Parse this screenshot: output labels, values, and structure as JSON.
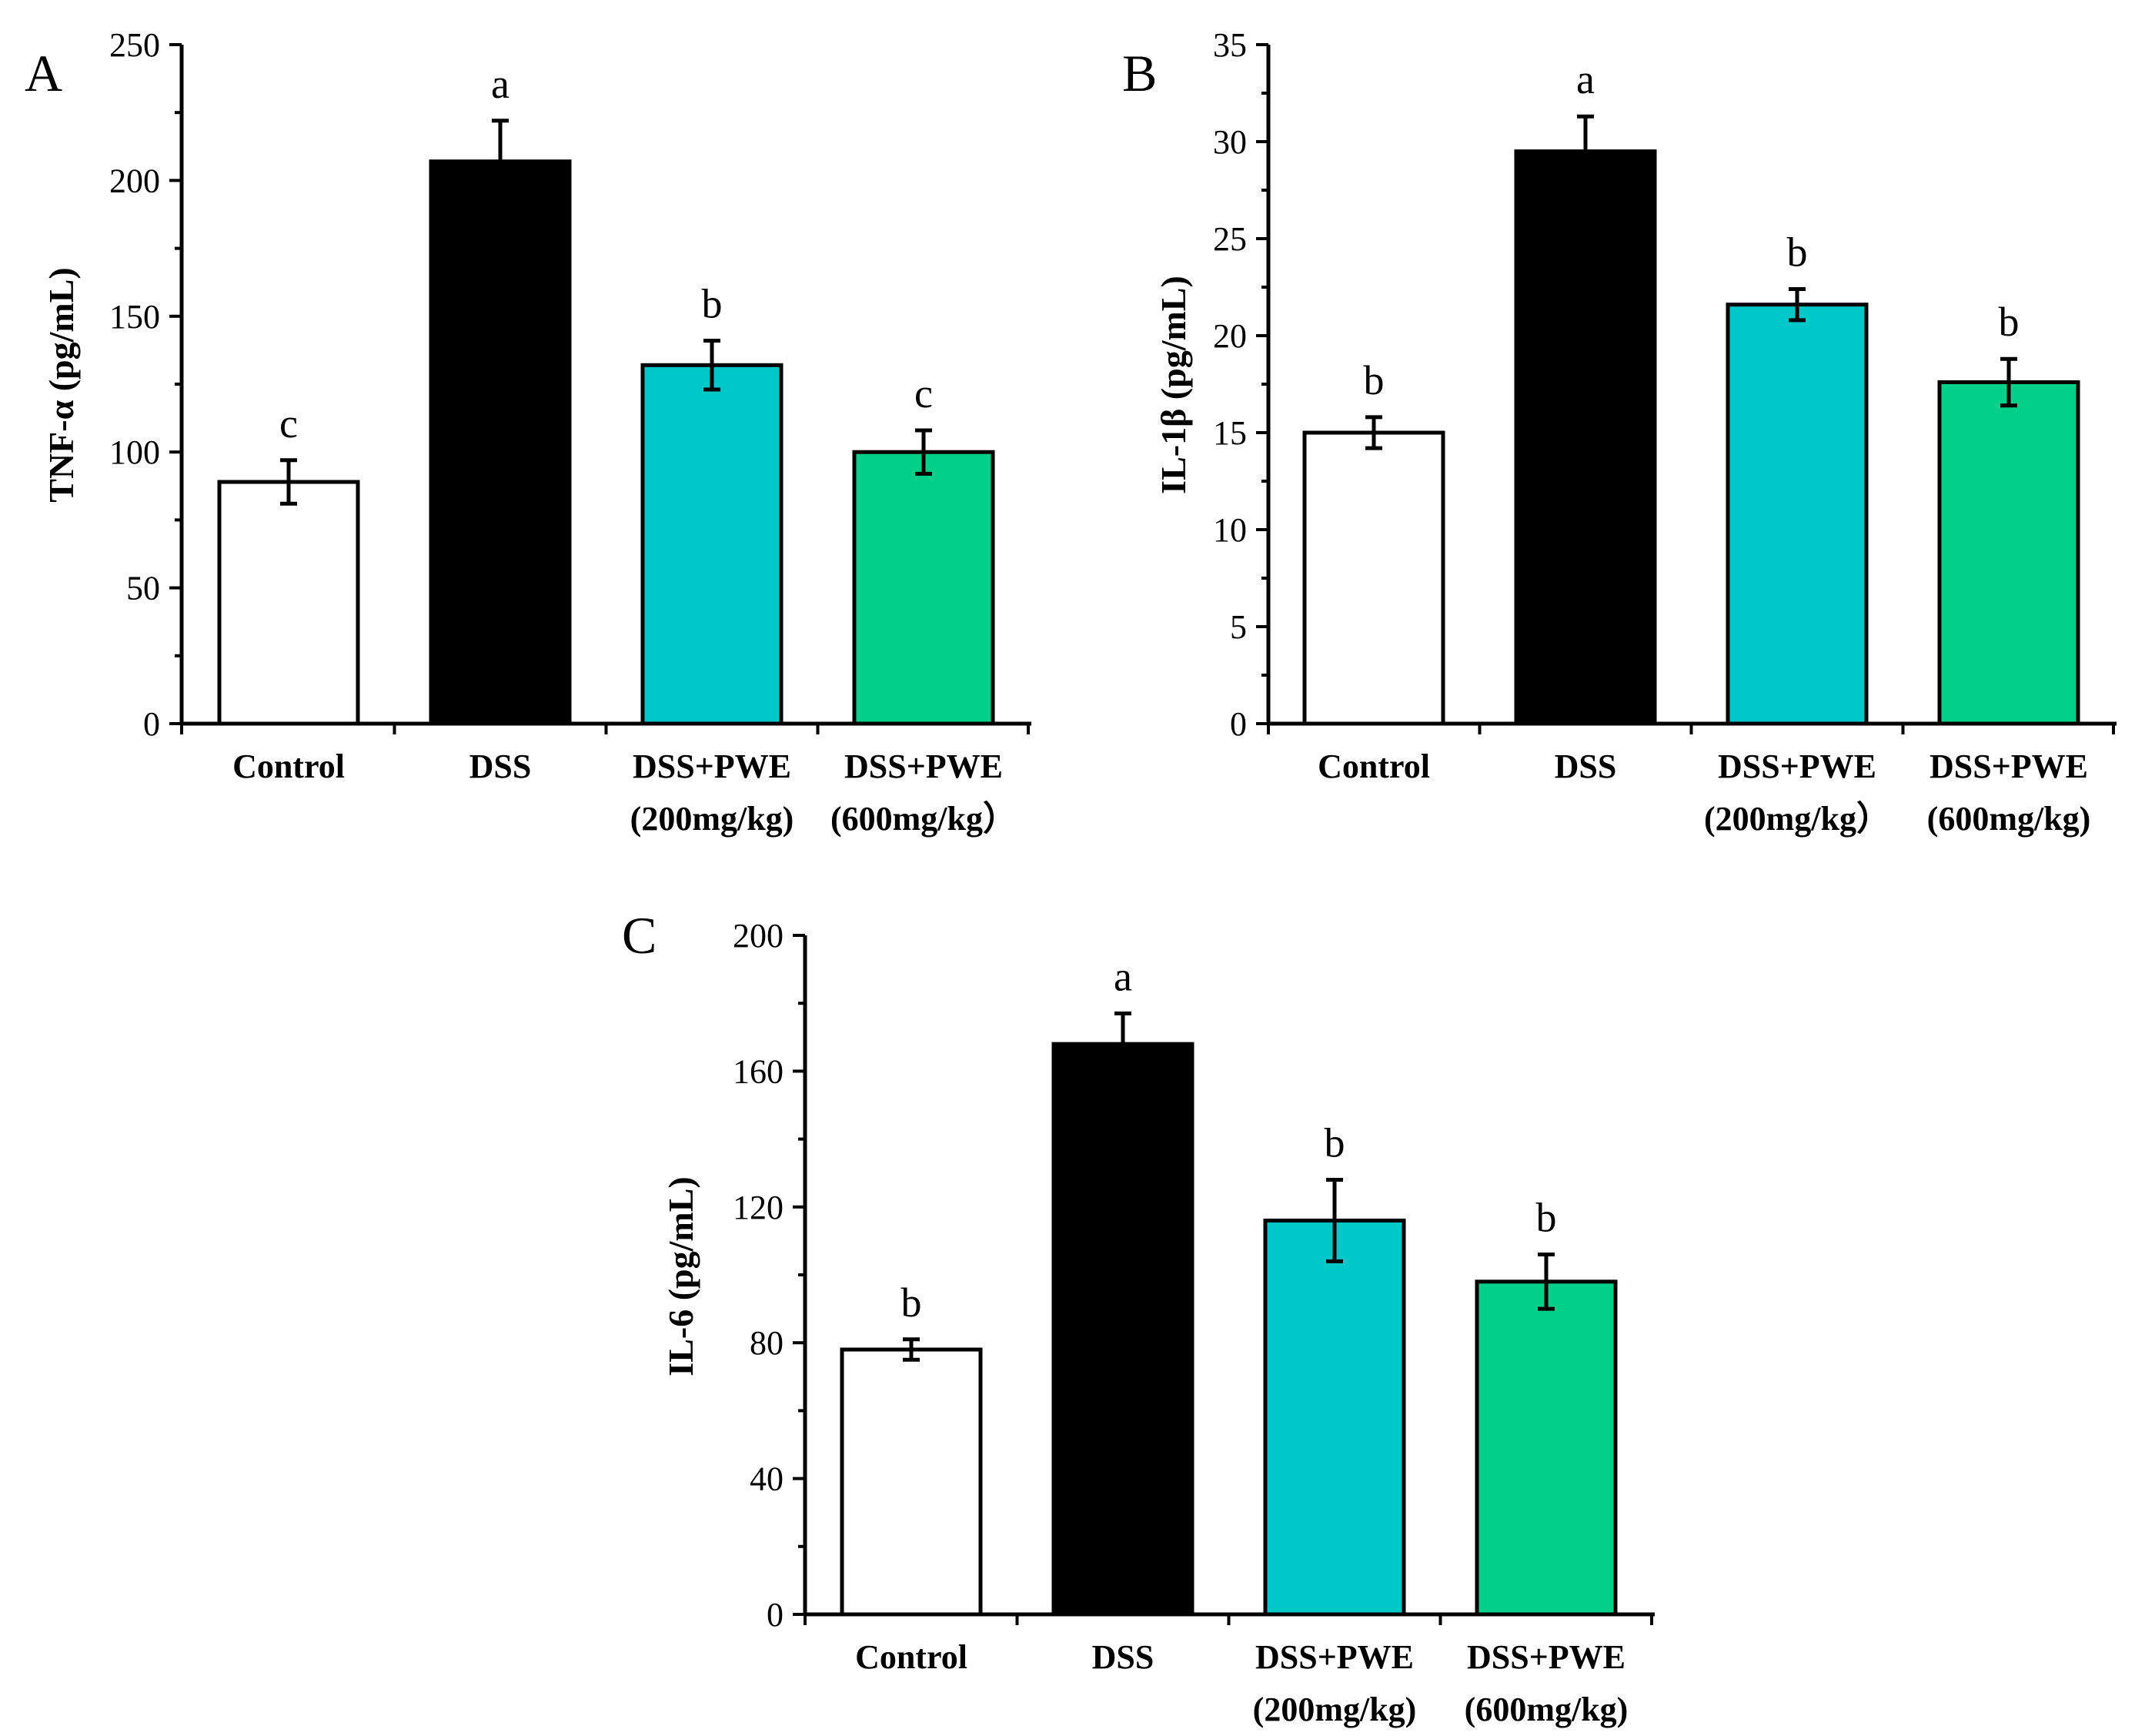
{
  "colors": {
    "control": "#ffffff",
    "dss": "#000000",
    "pwe200": "#00c8c8",
    "pwe600": "#00d08a"
  },
  "chart_data": [
    {
      "type": "bar",
      "panel": "A",
      "ylabel": "TNF-α (pg/mL)",
      "ylim": [
        0,
        250
      ],
      "ticks": [
        "0",
        "50",
        "100",
        "150",
        "200",
        "250"
      ],
      "tick_values": [
        0,
        50,
        100,
        150,
        200,
        250
      ],
      "categories": [
        {
          "line1": "Control",
          "line2": ""
        },
        {
          "line1": "DSS",
          "line2": ""
        },
        {
          "line1": "DSS+PWE",
          "line2": "(200mg/kg)"
        },
        {
          "line1": "DSS+PWE",
          "line2": "(600mg/kg）"
        }
      ],
      "values": [
        89,
        207,
        132,
        100
      ],
      "errors": [
        8,
        15,
        9,
        8
      ],
      "significance": [
        "c",
        "a",
        "b",
        "c"
      ]
    },
    {
      "type": "bar",
      "panel": "B",
      "ylabel": "IL-1β (pg/mL)",
      "ylim": [
        0,
        35
      ],
      "ticks": [
        "0",
        "5",
        "10",
        "15",
        "20",
        "25",
        "30",
        "35"
      ],
      "tick_values": [
        0,
        5,
        10,
        15,
        20,
        25,
        30,
        35
      ],
      "categories": [
        {
          "line1": "Control",
          "line2": ""
        },
        {
          "line1": "DSS",
          "line2": ""
        },
        {
          "line1": "DSS+PWE",
          "line2": "(200mg/kg）"
        },
        {
          "line1": "DSS+PWE",
          "line2": "(600mg/kg)"
        }
      ],
      "values": [
        15.0,
        29.5,
        21.6,
        17.6
      ],
      "errors": [
        0.8,
        1.8,
        0.8,
        1.2
      ],
      "significance": [
        "b",
        "a",
        "b",
        "b"
      ]
    },
    {
      "type": "bar",
      "panel": "C",
      "ylabel": "IL-6 (pg/mL)",
      "ylim": [
        0,
        200
      ],
      "ticks": [
        "0",
        "40",
        "80",
        "120",
        "160",
        "200"
      ],
      "tick_values": [
        0,
        40,
        80,
        120,
        160,
        200
      ],
      "categories": [
        {
          "line1": "Control",
          "line2": ""
        },
        {
          "line1": "DSS",
          "line2": ""
        },
        {
          "line1": "DSS+PWE",
          "line2": "(200mg/kg)"
        },
        {
          "line1": "DSS+PWE",
          "line2": "(600mg/kg)"
        }
      ],
      "values": [
        78,
        168,
        116,
        98
      ],
      "errors": [
        3,
        9,
        12,
        8
      ],
      "significance": [
        "b",
        "a",
        "b",
        "b"
      ]
    }
  ]
}
